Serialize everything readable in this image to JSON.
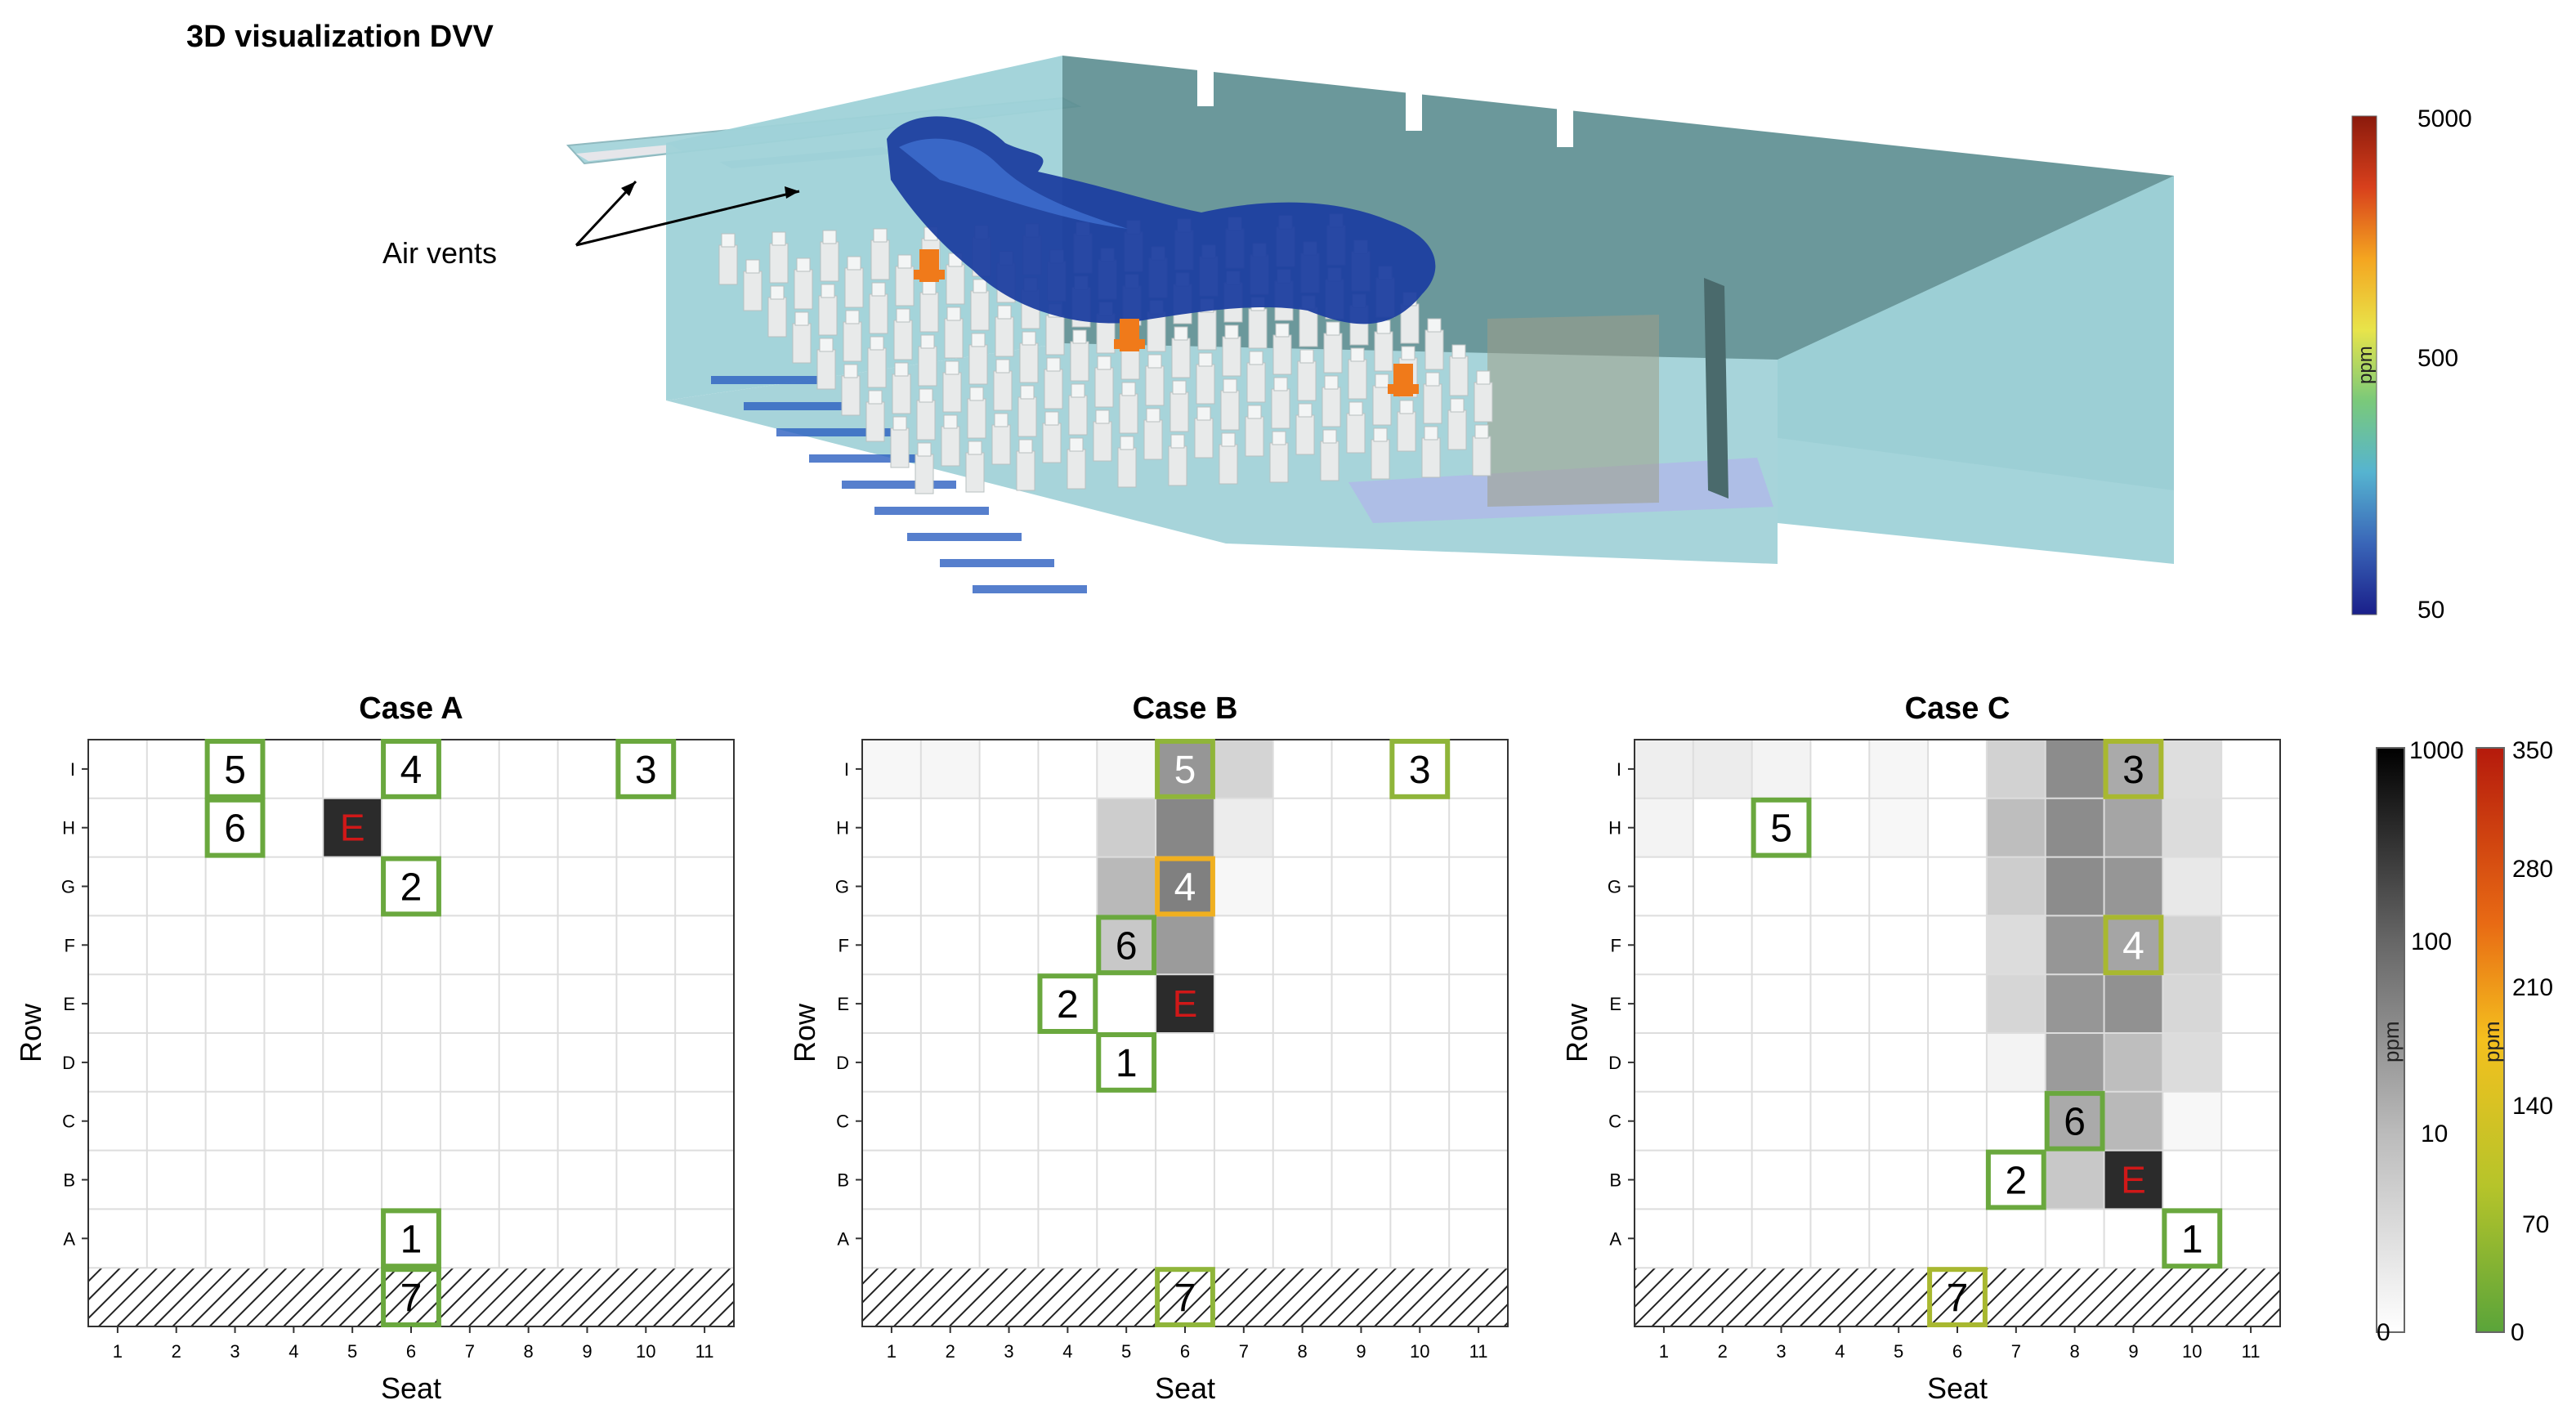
{
  "figure": {
    "title": "3D visualization DVV",
    "air_vents_label": "Air vents"
  },
  "colorbar_3d": {
    "unit": "ppm",
    "ticks": [
      "5000",
      "5000",
      "500",
      "50"
    ],
    "colors": [
      "#8b1a0c",
      "#d8401c",
      "#f4a520",
      "#e8e44a",
      "#7ac97a",
      "#56b4d0",
      "#3a66b8",
      "#1a1f8a"
    ]
  },
  "colorbar_gray": {
    "unit": "ppm",
    "ticks": [
      "1000",
      "100",
      "10",
      "0"
    ]
  },
  "colorbar_color": {
    "unit": "ppm",
    "ticks": [
      "350",
      "280",
      "210",
      "140",
      "70",
      "0"
    ]
  },
  "panels": [
    {
      "title": "Case A",
      "xlabel": "Seat",
      "ylabel": "Row",
      "seat_ticks": [
        "1",
        "2",
        "3",
        "4",
        "5",
        "6",
        "7",
        "8",
        "9",
        "10",
        "11"
      ],
      "row_ticks": [
        "I",
        "H",
        "G",
        "F",
        "E",
        "D",
        "C",
        "B",
        "A"
      ],
      "emitter": {
        "seat": 5,
        "row": "H",
        "label": "E"
      },
      "sensors": [
        {
          "label": "5",
          "seat": 3,
          "row": "I",
          "color": "#6aa83e"
        },
        {
          "label": "4",
          "seat": 6,
          "row": "I",
          "color": "#6aa83e"
        },
        {
          "label": "3",
          "seat": 10,
          "row": "I",
          "color": "#6aa83e"
        },
        {
          "label": "6",
          "seat": 3,
          "row": "H",
          "color": "#6aa83e"
        },
        {
          "label": "2",
          "seat": 6,
          "row": "G",
          "color": "#6aa83e"
        },
        {
          "label": "1",
          "seat": 6,
          "row": "A",
          "color": "#6aa83e"
        },
        {
          "label": "7",
          "seat": 6,
          "row": "floor",
          "color": "#6aa83e"
        }
      ],
      "heat": []
    },
    {
      "title": "Case B",
      "xlabel": "Seat",
      "ylabel": "Row",
      "seat_ticks": [
        "1",
        "2",
        "3",
        "4",
        "5",
        "6",
        "7",
        "8",
        "9",
        "10",
        "11"
      ],
      "row_ticks": [
        "I",
        "H",
        "G",
        "F",
        "E",
        "D",
        "C",
        "B",
        "A"
      ],
      "emitter": {
        "seat": 6,
        "row": "E",
        "label": "E"
      },
      "sensors": [
        {
          "label": "5",
          "seat": 6,
          "row": "I",
          "color": "#8fb53a"
        },
        {
          "label": "3",
          "seat": 10,
          "row": "I",
          "color": "#8fb53a"
        },
        {
          "label": "4",
          "seat": 6,
          "row": "G",
          "color": "#f0b020"
        },
        {
          "label": "6",
          "seat": 5,
          "row": "F",
          "color": "#6aa83e"
        },
        {
          "label": "2",
          "seat": 4,
          "row": "E",
          "color": "#6aa83e"
        },
        {
          "label": "1",
          "seat": 5,
          "row": "D",
          "color": "#6aa83e"
        },
        {
          "label": "7",
          "seat": 6,
          "row": "floor",
          "color": "#8fb53a"
        }
      ],
      "heat": [
        {
          "seat": 1,
          "row": "I",
          "g": 247
        },
        {
          "seat": 2,
          "row": "I",
          "g": 246
        },
        {
          "seat": 5,
          "row": "I",
          "g": 247
        },
        {
          "seat": 6,
          "row": "I",
          "g": 150
        },
        {
          "seat": 7,
          "row": "I",
          "g": 212
        },
        {
          "seat": 5,
          "row": "H",
          "g": 205
        },
        {
          "seat": 6,
          "row": "H",
          "g": 135
        },
        {
          "seat": 7,
          "row": "H",
          "g": 236
        },
        {
          "seat": 5,
          "row": "G",
          "g": 185
        },
        {
          "seat": 6,
          "row": "G",
          "g": 128
        },
        {
          "seat": 7,
          "row": "G",
          "g": 247
        },
        {
          "seat": 5,
          "row": "F",
          "g": 200
        },
        {
          "seat": 6,
          "row": "F",
          "g": 155
        }
      ]
    },
    {
      "title": "Case C",
      "xlabel": "Seat",
      "ylabel": "Row",
      "seat_ticks": [
        "1",
        "2",
        "3",
        "4",
        "5",
        "6",
        "7",
        "8",
        "9",
        "10",
        "11"
      ],
      "row_ticks": [
        "I",
        "H",
        "G",
        "F",
        "E",
        "D",
        "C",
        "B",
        "A"
      ],
      "emitter": {
        "seat": 9,
        "row": "B",
        "label": "E"
      },
      "sensors": [
        {
          "label": "3",
          "seat": 9,
          "row": "I",
          "color": "#a8b830"
        },
        {
          "label": "5",
          "seat": 3,
          "row": "H",
          "color": "#6aa83e"
        },
        {
          "label": "4",
          "seat": 9,
          "row": "F",
          "color": "#a8b830"
        },
        {
          "label": "6",
          "seat": 8,
          "row": "C",
          "color": "#6aa83e"
        },
        {
          "label": "2",
          "seat": 7,
          "row": "B",
          "color": "#6aa83e"
        },
        {
          "label": "1",
          "seat": 10,
          "row": "A",
          "color": "#6aa83e"
        },
        {
          "label": "7",
          "seat": 6,
          "row": "floor",
          "color": "#a8b830"
        }
      ],
      "heat": [
        {
          "seat": 1,
          "row": "I",
          "g": 238
        },
        {
          "seat": 2,
          "row": "I",
          "g": 236
        },
        {
          "seat": 3,
          "row": "I",
          "g": 243
        },
        {
          "seat": 5,
          "row": "I",
          "g": 246
        },
        {
          "seat": 7,
          "row": "I",
          "g": 210
        },
        {
          "seat": 8,
          "row": "I",
          "g": 140
        },
        {
          "seat": 9,
          "row": "I",
          "g": 170
        },
        {
          "seat": 10,
          "row": "I",
          "g": 222
        },
        {
          "seat": 1,
          "row": "H",
          "g": 243
        },
        {
          "seat": 5,
          "row": "H",
          "g": 247
        },
        {
          "seat": 7,
          "row": "H",
          "g": 190
        },
        {
          "seat": 8,
          "row": "H",
          "g": 140
        },
        {
          "seat": 9,
          "row": "H",
          "g": 165
        },
        {
          "seat": 10,
          "row": "H",
          "g": 220
        },
        {
          "seat": 7,
          "row": "G",
          "g": 205
        },
        {
          "seat": 8,
          "row": "G",
          "g": 140
        },
        {
          "seat": 9,
          "row": "G",
          "g": 150
        },
        {
          "seat": 10,
          "row": "G",
          "g": 232
        },
        {
          "seat": 7,
          "row": "F",
          "g": 220
        },
        {
          "seat": 8,
          "row": "F",
          "g": 150
        },
        {
          "seat": 9,
          "row": "F",
          "g": 165
        },
        {
          "seat": 10,
          "row": "F",
          "g": 210
        },
        {
          "seat": 7,
          "row": "E",
          "g": 214
        },
        {
          "seat": 8,
          "row": "E",
          "g": 150
        },
        {
          "seat": 9,
          "row": "E",
          "g": 145
        },
        {
          "seat": 10,
          "row": "E",
          "g": 215
        },
        {
          "seat": 7,
          "row": "D",
          "g": 243
        },
        {
          "seat": 8,
          "row": "D",
          "g": 155
        },
        {
          "seat": 9,
          "row": "D",
          "g": 190
        },
        {
          "seat": 10,
          "row": "D",
          "g": 220
        },
        {
          "seat": 8,
          "row": "C",
          "g": 170
        },
        {
          "seat": 9,
          "row": "C",
          "g": 185
        },
        {
          "seat": 10,
          "row": "C",
          "g": 247
        },
        {
          "seat": 8,
          "row": "B",
          "g": 200
        }
      ]
    }
  ]
}
